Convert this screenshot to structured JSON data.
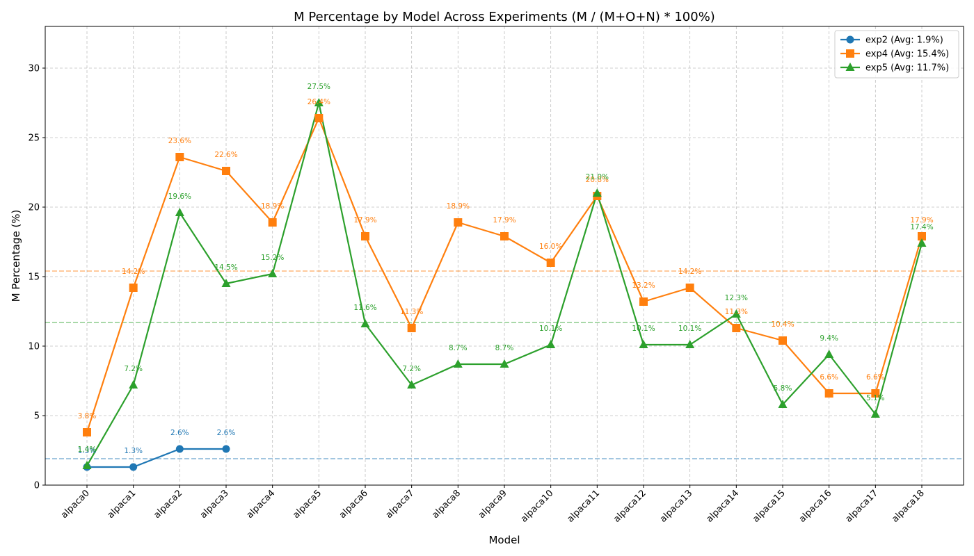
{
  "chart_data": {
    "type": "line",
    "title": "M Percentage by Model Across Experiments (M / (M+O+N) * 100%)",
    "xlabel": "Model",
    "ylabel": "M Percentage (%)",
    "categories": [
      "alpaca0",
      "alpaca1",
      "alpaca2",
      "alpaca3",
      "alpaca4",
      "alpaca5",
      "alpaca6",
      "alpaca7",
      "alpaca8",
      "alpaca9",
      "alpaca10",
      "alpaca11",
      "alpaca12",
      "alpaca13",
      "alpaca14",
      "alpaca15",
      "alpaca16",
      "alpaca17",
      "alpaca18"
    ],
    "ylim": [
      0,
      33
    ],
    "yticks": [
      0,
      5,
      10,
      15,
      20,
      25,
      30
    ],
    "grid": true,
    "legend_position": "top-right",
    "series": [
      {
        "name": "exp2 (Avg: 1.9%)",
        "color": "#1f77b4",
        "marker": "circle",
        "average": 1.9,
        "values": [
          1.3,
          1.3,
          2.6,
          2.6,
          null,
          null,
          null,
          null,
          null,
          null,
          null,
          null,
          null,
          null,
          null,
          null,
          null,
          null,
          null
        ],
        "labels": [
          "1.3%",
          "1.3%",
          "2.6%",
          "2.6%",
          null,
          null,
          null,
          null,
          null,
          null,
          null,
          null,
          null,
          null,
          null,
          null,
          null,
          null,
          null
        ]
      },
      {
        "name": "exp4 (Avg: 15.4%)",
        "color": "#ff7f0e",
        "marker": "square",
        "average": 15.4,
        "values": [
          3.8,
          14.2,
          23.6,
          22.6,
          18.9,
          26.4,
          17.9,
          11.3,
          18.9,
          17.9,
          16.0,
          20.8,
          13.2,
          14.2,
          11.3,
          10.4,
          6.6,
          6.6,
          17.9
        ],
        "labels": [
          "3.8%",
          "14.2%",
          "23.6%",
          "22.6%",
          "18.9%",
          "26.4%",
          "17.9%",
          "11.3%",
          "18.9%",
          "17.9%",
          "16.0%",
          "20.8%",
          "13.2%",
          "14.2%",
          "11.3%",
          "10.4%",
          "6.6%",
          "6.6%",
          "17.9%"
        ]
      },
      {
        "name": "exp5 (Avg: 11.7%)",
        "color": "#2ca02c",
        "marker": "triangle",
        "average": 11.7,
        "values": [
          1.4,
          7.2,
          19.6,
          14.5,
          15.2,
          27.5,
          11.6,
          7.2,
          8.7,
          8.7,
          10.1,
          21.0,
          10.1,
          10.1,
          12.3,
          5.8,
          9.4,
          5.1,
          17.4
        ],
        "labels": [
          "1.4%",
          "7.2%",
          "19.6%",
          "14.5%",
          "15.2%",
          "27.5%",
          "11.6%",
          "7.2%",
          "8.7%",
          "8.7%",
          "10.1%",
          "21.0%",
          "10.1%",
          "10.1%",
          "12.3%",
          "5.8%",
          "9.4%",
          "5.1%",
          "17.4%"
        ]
      }
    ]
  }
}
